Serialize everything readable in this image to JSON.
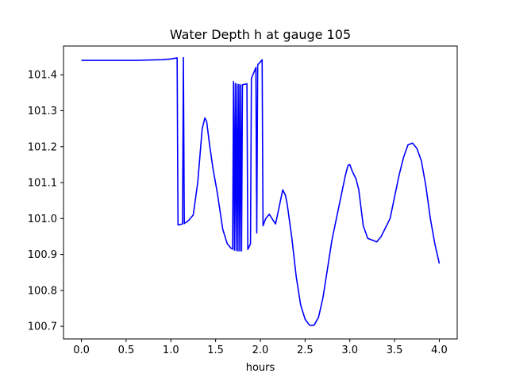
{
  "chart_data": {
    "type": "line",
    "title": "Water Depth h at gauge 105",
    "xlabel": "hours",
    "ylabel": "",
    "xlim": [
      -0.2,
      4.2
    ],
    "ylim": [
      100.665,
      101.48
    ],
    "xticks": [
      0.0,
      0.5,
      1.0,
      1.5,
      2.0,
      2.5,
      3.0,
      3.5,
      4.0
    ],
    "xtick_labels": [
      "0.0",
      "0.5",
      "1.0",
      "1.5",
      "2.0",
      "2.5",
      "3.0",
      "3.5",
      "4.0"
    ],
    "yticks": [
      100.7,
      100.8,
      100.9,
      101.0,
      101.1,
      101.2,
      101.3,
      101.4
    ],
    "ytick_labels": [
      "100.7",
      "100.8",
      "100.9",
      "101.0",
      "101.1",
      "101.2",
      "101.3",
      "101.4"
    ],
    "grid": false,
    "series": [
      {
        "color": "#0000ff",
        "x": [
          0.0,
          0.6,
          0.9,
          1.0,
          1.07,
          1.075,
          1.08,
          1.13,
          1.135,
          1.14,
          1.15,
          1.2,
          1.25,
          1.3,
          1.35,
          1.38,
          1.4,
          1.43,
          1.47,
          1.52,
          1.58,
          1.63,
          1.67,
          1.69,
          1.7,
          1.705,
          1.71,
          1.72,
          1.725,
          1.73,
          1.74,
          1.745,
          1.75,
          1.76,
          1.765,
          1.77,
          1.78,
          1.785,
          1.79,
          1.8,
          1.85,
          1.855,
          1.86,
          1.89,
          1.895,
          1.9,
          1.95,
          1.955,
          1.96,
          1.97,
          1.975,
          1.98,
          2.02,
          2.025,
          2.03,
          2.06,
          2.1,
          2.13,
          2.17,
          2.2,
          2.25,
          2.28,
          2.3,
          2.35,
          2.4,
          2.45,
          2.5,
          2.55,
          2.6,
          2.65,
          2.7,
          2.75,
          2.8,
          2.85,
          2.9,
          2.95,
          2.98,
          3.0,
          3.03,
          3.07,
          3.1,
          3.15,
          3.2,
          3.25,
          3.3,
          3.35,
          3.4,
          3.45,
          3.5,
          3.55,
          3.6,
          3.65,
          3.7,
          3.75,
          3.8,
          3.85,
          3.9,
          3.95,
          4.0
        ],
        "y": [
          101.44,
          101.44,
          101.442,
          101.444,
          101.447,
          101.2,
          100.982,
          100.985,
          101.2,
          101.448,
          100.986,
          100.995,
          101.01,
          101.1,
          101.25,
          101.28,
          101.27,
          101.21,
          101.14,
          101.07,
          100.97,
          100.93,
          100.918,
          100.915,
          101.381,
          101.15,
          100.912,
          101.376,
          101.15,
          100.911,
          101.374,
          101.15,
          100.91,
          101.373,
          101.15,
          100.91,
          101.372,
          101.15,
          100.91,
          101.372,
          101.375,
          101.15,
          100.914,
          100.93,
          101.16,
          101.39,
          101.42,
          101.18,
          100.96,
          101.425,
          101.43,
          101.43,
          101.442,
          101.2,
          100.98,
          101.0,
          101.012,
          101.0,
          100.985,
          101.02,
          101.08,
          101.065,
          101.04,
          100.95,
          100.84,
          100.76,
          100.72,
          100.703,
          100.703,
          100.725,
          100.78,
          100.86,
          100.94,
          101.0,
          101.06,
          101.12,
          101.148,
          101.15,
          101.13,
          101.11,
          101.08,
          100.98,
          100.945,
          100.94,
          100.935,
          100.95,
          100.975,
          101.0,
          101.06,
          101.12,
          101.17,
          101.205,
          101.21,
          101.195,
          101.16,
          101.09,
          101.0,
          100.93,
          100.875
        ]
      }
    ]
  }
}
